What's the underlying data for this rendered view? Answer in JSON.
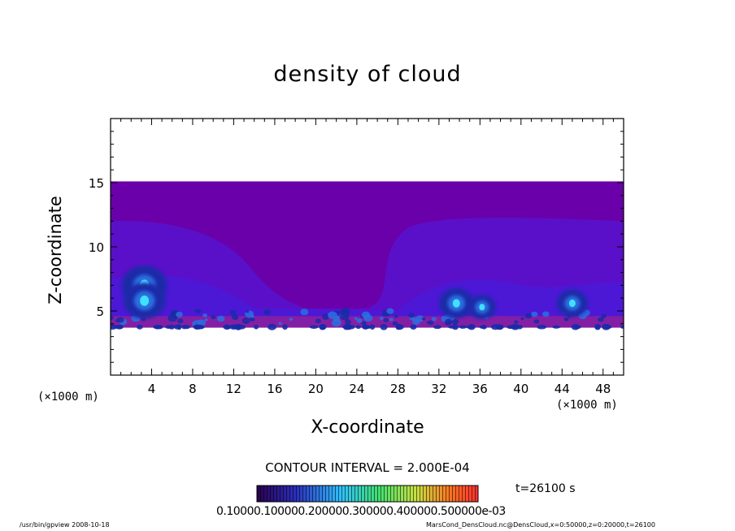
{
  "chart_data": {
    "type": "heatmap",
    "title": "density of cloud",
    "xlabel": "X-coordinate",
    "ylabel": "Z-coordinate",
    "x_unit_left": "(×1000 m)",
    "x_unit_right": "(×1000 m)",
    "xlim": [
      0,
      50
    ],
    "ylim": [
      0,
      20
    ],
    "x_ticks": [
      4,
      8,
      12,
      16,
      20,
      24,
      28,
      32,
      36,
      40,
      44,
      48
    ],
    "y_ticks": [
      5,
      10,
      15
    ],
    "field_extent_z": [
      3.7,
      15.1
    ],
    "colors": {
      "upper_layer": "#6a00aa",
      "lower_layer": "#5a10c8",
      "mid_layer": "#4a1ad8",
      "boundary": "#8a20a0",
      "cloud_dark": "#1a2aa8",
      "cloud_mid": "#2a70e0",
      "cloud_bright": "#40e0ff"
    },
    "cloud_cores": [
      {
        "x": 3.3,
        "z": 7.0,
        "strength": 1.0
      },
      {
        "x": 3.3,
        "z": 5.8,
        "strength": 0.9
      },
      {
        "x": 33.7,
        "z": 5.6,
        "strength": 0.7
      },
      {
        "x": 36.2,
        "z": 5.3,
        "strength": 0.5
      },
      {
        "x": 45.0,
        "z": 5.6,
        "strength": 0.6
      }
    ],
    "contour_interval_text": "CONTOUR INTERVAL = 2.000E-04",
    "time_text": "t=26100 s",
    "colorbar": {
      "label_text": "0.10000.100000.200000.300000.400000.500000e-03",
      "range": [
        0.0,
        0.0005
      ]
    }
  },
  "footer": {
    "left": "/usr/bin/gpview   2008-10-18",
    "right": "MarsCond_DensCloud.nc@DensCloud,x=0:50000,z=0:20000,t=26100"
  }
}
